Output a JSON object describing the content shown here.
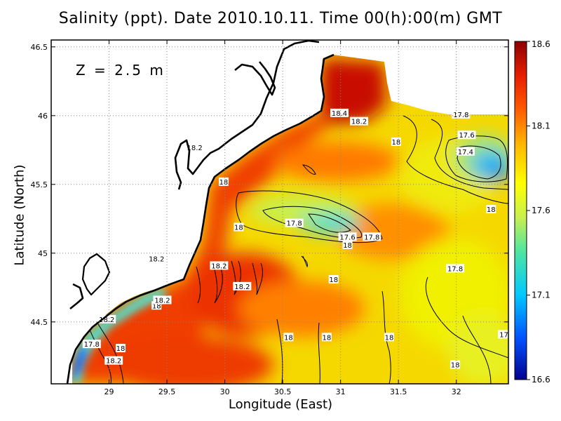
{
  "title": "Salinity (ppt). Date 2010.10.11. Time 00(h):00(m) GMT",
  "depth_label": "Z = 2.5 m",
  "chart_data": {
    "type": "heatmap",
    "title": "Salinity (ppt). Date 2010.10.11. Time 00(h):00(m) GMT",
    "xlabel": "Longitude (East)",
    "ylabel": "Latitude (North)",
    "xlim": [
      28.5,
      32.45
    ],
    "ylim": [
      44.05,
      46.55
    ],
    "x_ticks": [
      29,
      29.5,
      30,
      30.5,
      31,
      31.5,
      32
    ],
    "x_tick_labels": [
      "29",
      "29.5",
      "30",
      "30.5",
      "31",
      "31.5",
      "32"
    ],
    "y_ticks": [
      44.5,
      45,
      45.5,
      46,
      46.5
    ],
    "y_tick_labels": [
      "44.5",
      "45",
      "45.5",
      "46",
      "46.5"
    ],
    "grid": true,
    "colorbar": {
      "min": 16.6,
      "max": 18.6,
      "ticks": [
        16.6,
        17.1,
        17.6,
        18.1,
        18.6
      ],
      "tick_labels": [
        "16.6",
        "17.1",
        "17.6",
        "18.1",
        "18.6"
      ],
      "colors": [
        "#00008c",
        "#0050ff",
        "#00c8ff",
        "#50e6a0",
        "#c8f050",
        "#ffff00",
        "#ffb400",
        "#ff5a00",
        "#e61e00",
        "#8c0000"
      ]
    },
    "contour_labels": [
      {
        "text": "18.4",
        "lon": 30.99,
        "lat": 46.02
      },
      {
        "text": "18.2",
        "lon": 31.16,
        "lat": 45.96
      },
      {
        "text": "18.2",
        "lon": 29.74,
        "lat": 45.77
      },
      {
        "text": "18",
        "lon": 31.48,
        "lat": 45.81
      },
      {
        "text": "17.8",
        "lon": 32.04,
        "lat": 46.01
      },
      {
        "text": "17.6",
        "lon": 32.09,
        "lat": 45.86
      },
      {
        "text": "17.4",
        "lon": 32.08,
        "lat": 45.74
      },
      {
        "text": "18",
        "lon": 29.99,
        "lat": 45.52
      },
      {
        "text": "17.8",
        "lon": 30.6,
        "lat": 45.22
      },
      {
        "text": "18",
        "lon": 30.12,
        "lat": 45.19
      },
      {
        "text": "17.6",
        "lon": 31.06,
        "lat": 45.12
      },
      {
        "text": "17.8",
        "lon": 31.27,
        "lat": 45.12
      },
      {
        "text": "18",
        "lon": 31.06,
        "lat": 45.06
      },
      {
        "text": "18",
        "lon": 32.3,
        "lat": 45.32
      },
      {
        "text": "18.2",
        "lon": 29.41,
        "lat": 44.96
      },
      {
        "text": "18.2",
        "lon": 29.95,
        "lat": 44.91
      },
      {
        "text": "18.2",
        "lon": 30.15,
        "lat": 44.76
      },
      {
        "text": "17.8",
        "lon": 31.99,
        "lat": 44.89
      },
      {
        "text": "18",
        "lon": 30.94,
        "lat": 44.81
      },
      {
        "text": "18",
        "lon": 29.41,
        "lat": 44.62
      },
      {
        "text": "18.2",
        "lon": 29.46,
        "lat": 44.66
      },
      {
        "text": "18.2",
        "lon": 28.98,
        "lat": 44.52
      },
      {
        "text": "18",
        "lon": 30.55,
        "lat": 44.39
      },
      {
        "text": "18",
        "lon": 30.88,
        "lat": 44.39
      },
      {
        "text": "18",
        "lon": 31.42,
        "lat": 44.39
      },
      {
        "text": "17.8",
        "lon": 28.85,
        "lat": 44.34
      },
      {
        "text": "18",
        "lon": 29.1,
        "lat": 44.31
      },
      {
        "text": "18.2",
        "lon": 29.04,
        "lat": 44.22
      },
      {
        "text": "18",
        "lon": 31.99,
        "lat": 44.19
      },
      {
        "text": "17.",
        "lon": 32.42,
        "lat": 44.41
      }
    ]
  }
}
